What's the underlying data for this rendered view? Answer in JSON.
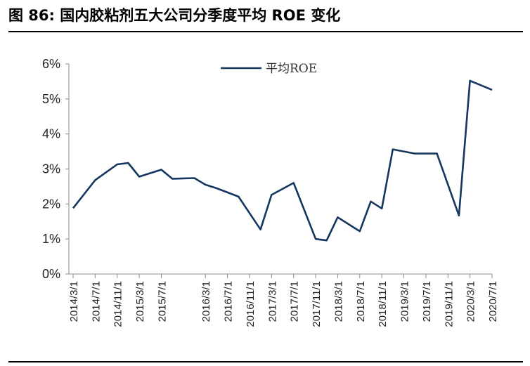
{
  "figure": {
    "title": "图 86:  国内胶粘剂五大公司分季度平均 ROE 变化"
  },
  "colors": {
    "series": "#14365f",
    "axis": "#8c8c8c",
    "text": "#222222"
  },
  "chart_data": {
    "type": "line",
    "title": "",
    "xlabel": "",
    "ylabel": "",
    "ylim": [
      0,
      6
    ],
    "yticks": [
      "0%",
      "1%",
      "2%",
      "3%",
      "4%",
      "5%",
      "6%"
    ],
    "grid": false,
    "legend": "top-center",
    "x": [
      "2014/3/1",
      "2014/5/1",
      "2014/7/1",
      "2014/9/1",
      "2014/11/1",
      "2015/1/1",
      "2015/3/1",
      "2015/5/1",
      "2015/7/1",
      "2015/9/1",
      "2015/11/1",
      "2016/1/1",
      "2016/3/1",
      "2016/5/1",
      "2016/7/1",
      "2016/9/1",
      "2016/11/1",
      "2017/1/1",
      "2017/3/1",
      "2017/5/1",
      "2017/7/1",
      "2017/9/1",
      "2017/11/1",
      "2018/1/1",
      "2018/3/1",
      "2018/5/1",
      "2018/7/1",
      "2018/9/1",
      "2018/11/1",
      "2019/1/1",
      "2019/3/1",
      "2019/5/1",
      "2019/7/1",
      "2019/9/1",
      "2019/11/1",
      "2020/1/1",
      "2020/3/1",
      "2020/5/1",
      "2020/7/1"
    ],
    "xticks": [
      "2014/3/1",
      "2014/7/1",
      "2014/11/1",
      "2015/3/1",
      "2015/7/1",
      "2016/3/1",
      "2016/7/1",
      "2016/11/1",
      "2017/3/1",
      "2017/7/1",
      "2017/11/1",
      "2018/3/1",
      "2018/7/1",
      "2018/11/1",
      "2019/3/1",
      "2019/7/1",
      "2019/11/1",
      "2020/3/1",
      "2020/7/1"
    ],
    "series": [
      {
        "name": "平均ROE",
        "points": [
          {
            "x": "2014/3/1",
            "y": 1.88
          },
          {
            "x": "2014/7/1",
            "y": 2.68
          },
          {
            "x": "2014/11/1",
            "y": 3.13
          },
          {
            "x": "2015/1/1",
            "y": 3.17
          },
          {
            "x": "2015/3/1",
            "y": 2.78
          },
          {
            "x": "2015/5/1",
            "y": 2.88
          },
          {
            "x": "2015/7/1",
            "y": 2.98
          },
          {
            "x": "2015/9/1",
            "y": 2.72
          },
          {
            "x": "2016/1/1",
            "y": 2.74
          },
          {
            "x": "2016/3/1",
            "y": 2.55
          },
          {
            "x": "2016/5/1",
            "y": 2.45
          },
          {
            "x": "2016/9/1",
            "y": 2.21
          },
          {
            "x": "2017/1/1",
            "y": 1.27
          },
          {
            "x": "2017/3/1",
            "y": 2.26
          },
          {
            "x": "2017/7/1",
            "y": 2.6
          },
          {
            "x": "2017/11/1",
            "y": 1.0
          },
          {
            "x": "2018/1/1",
            "y": 0.96
          },
          {
            "x": "2018/3/1",
            "y": 1.62
          },
          {
            "x": "2018/7/1",
            "y": 1.22
          },
          {
            "x": "2018/9/1",
            "y": 2.07
          },
          {
            "x": "2018/11/1",
            "y": 1.87
          },
          {
            "x": "2019/1/1",
            "y": 3.56
          },
          {
            "x": "2019/5/1",
            "y": 3.44
          },
          {
            "x": "2019/9/1",
            "y": 3.44
          },
          {
            "x": "2020/1/1",
            "y": 1.67
          },
          {
            "x": "2020/3/1",
            "y": 5.52
          },
          {
            "x": "2020/7/1",
            "y": 5.26
          }
        ]
      }
    ]
  }
}
